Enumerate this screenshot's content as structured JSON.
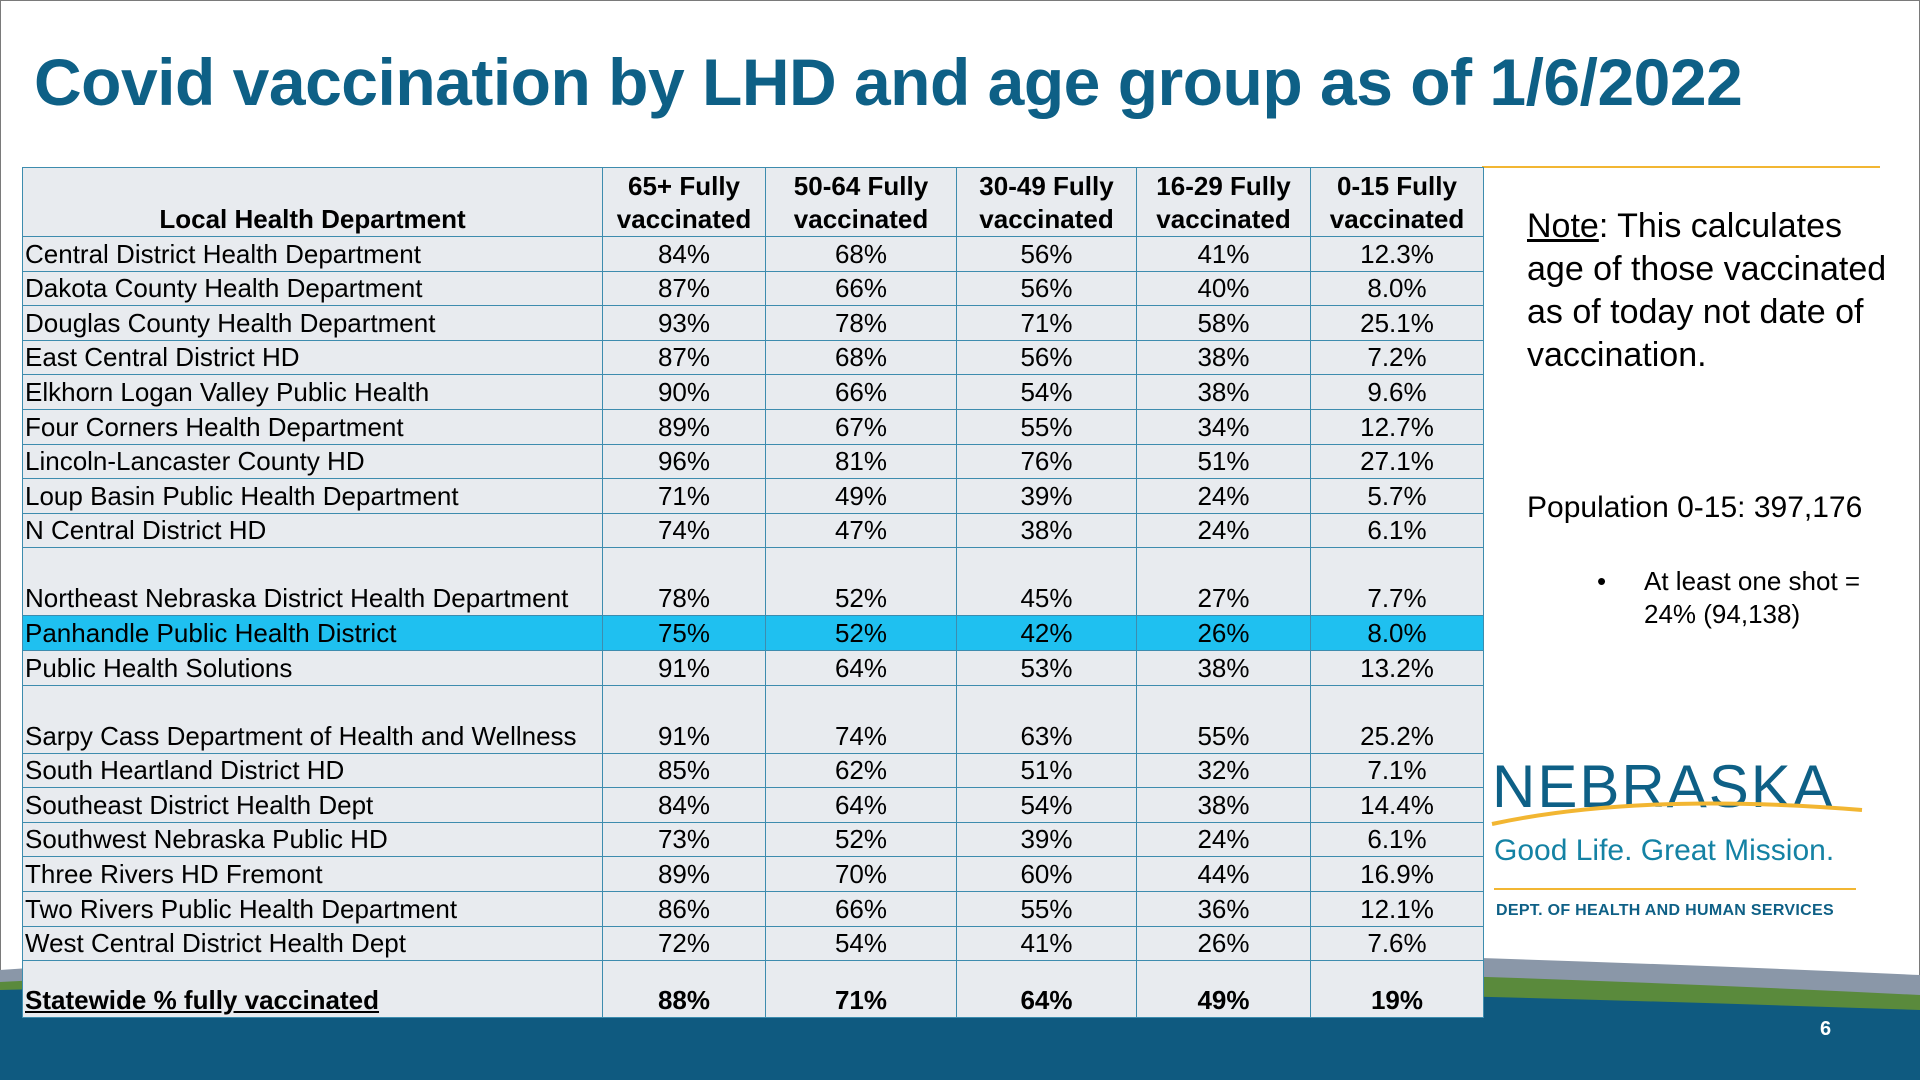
{
  "slide": {
    "title": "Covid vaccination by LHD and age group as of 1/6/2022",
    "page_number": "6"
  },
  "table": {
    "headers": [
      "Local Health Department",
      "65+ Fully vaccinated",
      "50-64 Fully vaccinated",
      "30-49 Fully vaccinated",
      "16-29 Fully vaccinated",
      "0-15 Fully vaccinated"
    ],
    "rows": [
      [
        "Central District Health Department",
        "84%",
        "68%",
        "56%",
        "41%",
        "12.3%"
      ],
      [
        "Dakota County Health Department",
        "87%",
        "66%",
        "56%",
        "40%",
        "8.0%"
      ],
      [
        "Douglas County Health Department",
        "93%",
        "78%",
        "71%",
        "58%",
        "25.1%"
      ],
      [
        "East Central District HD",
        "87%",
        "68%",
        "56%",
        "38%",
        "7.2%"
      ],
      [
        "Elkhorn Logan Valley Public Health",
        "90%",
        "66%",
        "54%",
        "38%",
        "9.6%"
      ],
      [
        "Four Corners Health Department",
        "89%",
        "67%",
        "55%",
        "34%",
        "12.7%"
      ],
      [
        "Lincoln-Lancaster County HD",
        "96%",
        "81%",
        "76%",
        "51%",
        "27.1%"
      ],
      [
        "Loup Basin Public Health Department",
        "71%",
        "49%",
        "39%",
        "24%",
        "5.7%"
      ],
      [
        "N Central District HD",
        "74%",
        "47%",
        "38%",
        "24%",
        "6.1%"
      ],
      [
        "Northeast Nebraska District Health Department",
        "78%",
        "52%",
        "45%",
        "27%",
        "7.7%"
      ],
      [
        "Panhandle Public Health District",
        "75%",
        "52%",
        "42%",
        "26%",
        "8.0%"
      ],
      [
        "Public Health Solutions",
        "91%",
        "64%",
        "53%",
        "38%",
        "13.2%"
      ],
      [
        "Sarpy Cass Department of Health and Wellness",
        "91%",
        "74%",
        "63%",
        "55%",
        "25.2%"
      ],
      [
        "South Heartland District HD",
        "85%",
        "62%",
        "51%",
        "32%",
        "7.1%"
      ],
      [
        "Southeast District Health Dept",
        "84%",
        "64%",
        "54%",
        "38%",
        "14.4%"
      ],
      [
        "Southwest Nebraska Public HD",
        "73%",
        "52%",
        "39%",
        "24%",
        "6.1%"
      ],
      [
        "Three Rivers HD Fremont",
        "89%",
        "70%",
        "60%",
        "44%",
        "16.9%"
      ],
      [
        "Two Rivers Public Health Department",
        "86%",
        "66%",
        "55%",
        "36%",
        "12.1%"
      ],
      [
        "West Central District Health Dept",
        "72%",
        "54%",
        "41%",
        "26%",
        "7.6%"
      ]
    ],
    "highlighted_row": "Panhandle Public Health District",
    "statewide": [
      "Statewide % fully vaccinated",
      "88%",
      "71%",
      "64%",
      "49%",
      "19%"
    ]
  },
  "sidebar": {
    "note_label": "Note",
    "note_text": ": This calculates age of those vaccinated as of today not date of vaccination.",
    "population_text": "Population 0-15: 397,176",
    "bullet_glyph": "•",
    "bullet_text": "At least one shot = 24% (94,138)"
  },
  "logo": {
    "wordmark": "NEBRASKA",
    "tagline": "Good Life. Great Mission.",
    "department": "DEPT. OF HEALTH AND HUMAN SERVICES"
  },
  "colors": {
    "title_blue": "#0e6086",
    "highlight_cyan": "#1fc0f0",
    "table_fill": "#e8ebef",
    "table_border": "#3d8cae",
    "accent_gold": "#f2b632",
    "band_navy": "#0f5a80",
    "band_green": "#5a8a3c"
  }
}
